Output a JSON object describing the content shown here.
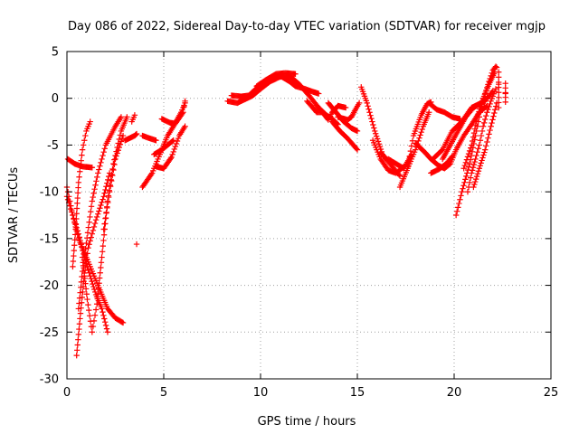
{
  "chart_data": {
    "type": "scatter",
    "title": "Day 086 of 2022, Sidereal Day-to-day VTEC variation (SDTVAR) for receiver mgjp",
    "xlabel": "GPS time / hours",
    "ylabel": "SDTVAR / TECUs",
    "xlim": [
      0,
      25
    ],
    "ylim": [
      -30,
      5
    ],
    "xticks": [
      0,
      5,
      10,
      15,
      20,
      25
    ],
    "yticks": [
      -30,
      -25,
      -20,
      -15,
      -10,
      -5,
      0,
      5
    ],
    "grid": true,
    "marker": "+",
    "color": "#ff0000",
    "step_hours": 0.05,
    "tracks": [
      [
        [
          0.0,
          -9.5
        ],
        [
          0.3,
          -12.5
        ],
        [
          0.6,
          -15
        ],
        [
          0.9,
          -16.5
        ],
        [
          1.3,
          -18.5
        ],
        [
          1.7,
          -20.5
        ],
        [
          2.1,
          -22.5
        ],
        [
          2.5,
          -23.5
        ],
        [
          2.9,
          -24
        ]
      ],
      [
        [
          0.0,
          -10.5
        ],
        [
          0.3,
          -12.5
        ],
        [
          0.6,
          -14.5
        ],
        [
          0.9,
          -17
        ],
        [
          1.2,
          -19
        ],
        [
          1.5,
          -21
        ],
        [
          1.8,
          -22.5
        ],
        [
          2.1,
          -25
        ]
      ],
      [
        [
          0.05,
          -6.5
        ],
        [
          0.4,
          -7
        ],
        [
          0.8,
          -7.3
        ],
        [
          1.3,
          -7.4
        ]
      ],
      [
        [
          0.5,
          -27.5
        ],
        [
          0.7,
          -23
        ],
        [
          0.9,
          -19
        ],
        [
          1.1,
          -16
        ],
        [
          1.5,
          -13
        ],
        [
          1.9,
          -10.5
        ],
        [
          2.2,
          -8
        ]
      ],
      [
        [
          0.6,
          -22.5
        ],
        [
          0.8,
          -18.5
        ],
        [
          1.0,
          -15.5
        ],
        [
          1.3,
          -11
        ],
        [
          1.6,
          -8
        ],
        [
          2.0,
          -5
        ],
        [
          2.5,
          -3
        ],
        [
          2.8,
          -2
        ]
      ],
      [
        [
          0.3,
          -18
        ],
        [
          0.45,
          -14
        ],
        [
          0.6,
          -9
        ],
        [
          0.8,
          -5.5
        ],
        [
          1.0,
          -3.5
        ],
        [
          1.2,
          -2.5
        ]
      ],
      [
        [
          0.8,
          -17
        ],
        [
          1.05,
          -21.5
        ],
        [
          1.3,
          -25
        ],
        [
          1.55,
          -22
        ],
        [
          1.8,
          -17
        ],
        [
          2.1,
          -11
        ],
        [
          2.4,
          -7
        ],
        [
          2.8,
          -3.5
        ],
        [
          3.1,
          -2
        ]
      ],
      [
        [
          1.9,
          -14
        ],
        [
          2.2,
          -10
        ],
        [
          2.5,
          -6.5
        ],
        [
          2.9,
          -4
        ]
      ],
      [
        [
          3.0,
          -4.5
        ],
        [
          3.5,
          -4
        ],
        [
          3.6,
          -3.8
        ]
      ],
      [
        [
          3.35,
          -2.5
        ],
        [
          3.5,
          -1.8
        ]
      ],
      [
        [
          3.9,
          -4
        ],
        [
          4.3,
          -4.3
        ],
        [
          4.6,
          -4.5
        ]
      ],
      [
        [
          3.9,
          -9.5
        ],
        [
          4.4,
          -8
        ],
        [
          4.8,
          -6
        ],
        [
          5.2,
          -4
        ],
        [
          5.5,
          -3
        ],
        [
          5.9,
          -1.5
        ],
        [
          6.1,
          -0.5
        ]
      ],
      [
        [
          4.5,
          -6
        ],
        [
          4.9,
          -5.5
        ],
        [
          5.2,
          -5
        ],
        [
          5.5,
          -4.5
        ]
      ],
      [
        [
          4.9,
          -2.2
        ],
        [
          5.3,
          -2.6
        ],
        [
          5.6,
          -2.7
        ],
        [
          6.0,
          -1.5
        ],
        [
          6.1,
          -0.3
        ]
      ],
      [
        [
          4.6,
          -7.3
        ],
        [
          5.0,
          -7.5
        ],
        [
          5.4,
          -6.3
        ],
        [
          5.8,
          -4
        ],
        [
          6.1,
          -3
        ]
      ],
      [
        [
          8.3,
          -0.3
        ],
        [
          8.8,
          -0.5
        ],
        [
          9.2,
          -0.1
        ],
        [
          9.6,
          0.3
        ],
        [
          10.0,
          1.0
        ],
        [
          10.5,
          1.8
        ],
        [
          11.0,
          2.3
        ],
        [
          11.5,
          2.4
        ],
        [
          12.0,
          1.5
        ],
        [
          12.5,
          0.3
        ],
        [
          13.0,
          -1.0
        ],
        [
          13.4,
          -1.8
        ],
        [
          13.7,
          -2.2
        ],
        [
          14.0,
          -2.8
        ]
      ],
      [
        [
          8.5,
          0.3
        ],
        [
          9.0,
          0.2
        ],
        [
          9.4,
          0.3
        ],
        [
          9.7,
          0.9
        ],
        [
          10.1,
          1.5
        ],
        [
          10.6,
          2.3
        ],
        [
          11.1,
          2.3
        ],
        [
          11.5,
          1.8
        ],
        [
          11.8,
          1.3
        ],
        [
          12.3,
          1.0
        ],
        [
          12.7,
          0.7
        ],
        [
          13.0,
          0.5
        ]
      ],
      [
        [
          9.8,
          1.3
        ],
        [
          10.3,
          2.0
        ],
        [
          10.8,
          2.6
        ],
        [
          11.3,
          2.7
        ],
        [
          11.8,
          2.6
        ]
      ],
      [
        [
          12.4,
          -0.3
        ],
        [
          12.7,
          -1.0
        ],
        [
          12.9,
          -1.5
        ],
        [
          13.2,
          -1.5
        ],
        [
          13.5,
          -2.3
        ],
        [
          13.7,
          -1.5
        ],
        [
          14.0,
          -0.8
        ],
        [
          14.4,
          -1.0
        ]
      ],
      [
        [
          13.5,
          -0.5
        ],
        [
          13.9,
          -1.5
        ],
        [
          14.3,
          -2.5
        ],
        [
          14.7,
          -3.2
        ],
        [
          15.0,
          -3.5
        ]
      ],
      [
        [
          13.7,
          -2.5
        ],
        [
          14.1,
          -3.5
        ],
        [
          14.5,
          -4.3
        ],
        [
          15.0,
          -5.5
        ]
      ],
      [
        [
          14.0,
          -2.0
        ],
        [
          14.5,
          -2.3
        ],
        [
          14.7,
          -2.0
        ],
        [
          14.9,
          -1.2
        ],
        [
          15.1,
          -0.5
        ]
      ],
      [
        [
          15.2,
          1.2
        ],
        [
          15.5,
          -0.5
        ],
        [
          15.9,
          -3.5
        ],
        [
          16.3,
          -6
        ],
        [
          16.8,
          -7.3
        ],
        [
          17.2,
          -8.3
        ]
      ],
      [
        [
          15.8,
          -4.5
        ],
        [
          16.2,
          -6.5
        ],
        [
          16.6,
          -7.7
        ],
        [
          17.0,
          -8
        ],
        [
          17.4,
          -7.3
        ]
      ],
      [
        [
          16.6,
          -6.5
        ],
        [
          17.0,
          -7
        ],
        [
          17.4,
          -7.5
        ],
        [
          17.8,
          -6
        ]
      ],
      [
        [
          16.2,
          -5.8
        ],
        [
          16.5,
          -6.5
        ]
      ],
      [
        [
          17.2,
          -9.5
        ],
        [
          17.6,
          -7.5
        ],
        [
          18.0,
          -5.5
        ],
        [
          18.4,
          -3
        ],
        [
          18.7,
          -1.5
        ]
      ],
      [
        [
          17.6,
          -7.3
        ],
        [
          17.9,
          -4
        ],
        [
          18.3,
          -1.8
        ],
        [
          18.6,
          -0.6
        ],
        [
          18.8,
          -0.4
        ]
      ],
      [
        [
          18.7,
          -0.5
        ],
        [
          19.1,
          -1.2
        ],
        [
          19.5,
          -1.5
        ],
        [
          19.9,
          -2.0
        ],
        [
          20.3,
          -2.2
        ]
      ],
      [
        [
          18.0,
          -4.8
        ],
        [
          18.5,
          -5.8
        ],
        [
          18.8,
          -6.5
        ],
        [
          19.2,
          -7.2
        ],
        [
          19.5,
          -7.5
        ],
        [
          19.8,
          -7.0
        ],
        [
          20.1,
          -5.5
        ],
        [
          20.5,
          -4.0
        ],
        [
          20.9,
          -2.8
        ],
        [
          21.3,
          -1.5
        ],
        [
          21.7,
          -0.8
        ]
      ],
      [
        [
          18.9,
          -6.5
        ],
        [
          19.4,
          -5.5
        ],
        [
          19.9,
          -3.5
        ],
        [
          20.4,
          -2.5
        ],
        [
          20.9,
          -1.0
        ],
        [
          21.3,
          -0.6
        ],
        [
          21.6,
          -0.3
        ]
      ],
      [
        [
          19.4,
          -6.5
        ],
        [
          19.8,
          -5.0
        ],
        [
          20.2,
          -3.5
        ],
        [
          20.6,
          -2.0
        ],
        [
          21.0,
          -1.0
        ],
        [
          21.4,
          -0.5
        ],
        [
          21.8,
          0.2
        ],
        [
          22.0,
          0.8
        ]
      ],
      [
        [
          18.8,
          -8.0
        ],
        [
          19.2,
          -7.6
        ],
        [
          19.6,
          -7.0
        ],
        [
          19.9,
          -6.2
        ]
      ],
      [
        [
          20.1,
          -12.5
        ],
        [
          20.4,
          -10
        ],
        [
          20.8,
          -7
        ],
        [
          21.1,
          -4
        ],
        [
          21.4,
          -1
        ],
        [
          21.6,
          0.5
        ],
        [
          21.8,
          1.8
        ],
        [
          22.0,
          3.0
        ],
        [
          22.15,
          3.4
        ]
      ],
      [
        [
          20.5,
          -7.5
        ],
        [
          20.9,
          -5
        ],
        [
          21.2,
          -2
        ],
        [
          21.5,
          0
        ],
        [
          21.8,
          1.5
        ],
        [
          22.1,
          2.8
        ]
      ],
      [
        [
          20.7,
          -10.0
        ],
        [
          20.9,
          -8.0
        ],
        [
          21.1,
          -6.5
        ],
        [
          21.3,
          -5.0
        ],
        [
          21.5,
          -3.0
        ],
        [
          21.7,
          -1.5
        ],
        [
          21.9,
          -0.3
        ],
        [
          22.15,
          1.0
        ]
      ],
      [
        [
          21.0,
          -9.5
        ],
        [
          21.3,
          -7.5
        ],
        [
          21.6,
          -5.5
        ],
        [
          21.9,
          -3.0
        ],
        [
          22.2,
          -0.5
        ]
      ],
      [
        [
          22.3,
          2.8
        ],
        [
          22.3,
          -1.0
        ]
      ],
      [
        [
          22.65,
          -0.4
        ],
        [
          22.65,
          1.6
        ]
      ]
    ],
    "extra_points": [
      [
        3.6,
        -15.6
      ],
      [
        22.2,
        3.3
      ],
      [
        22.3,
        1.5
      ],
      [
        22.65,
        0.5
      ]
    ]
  }
}
